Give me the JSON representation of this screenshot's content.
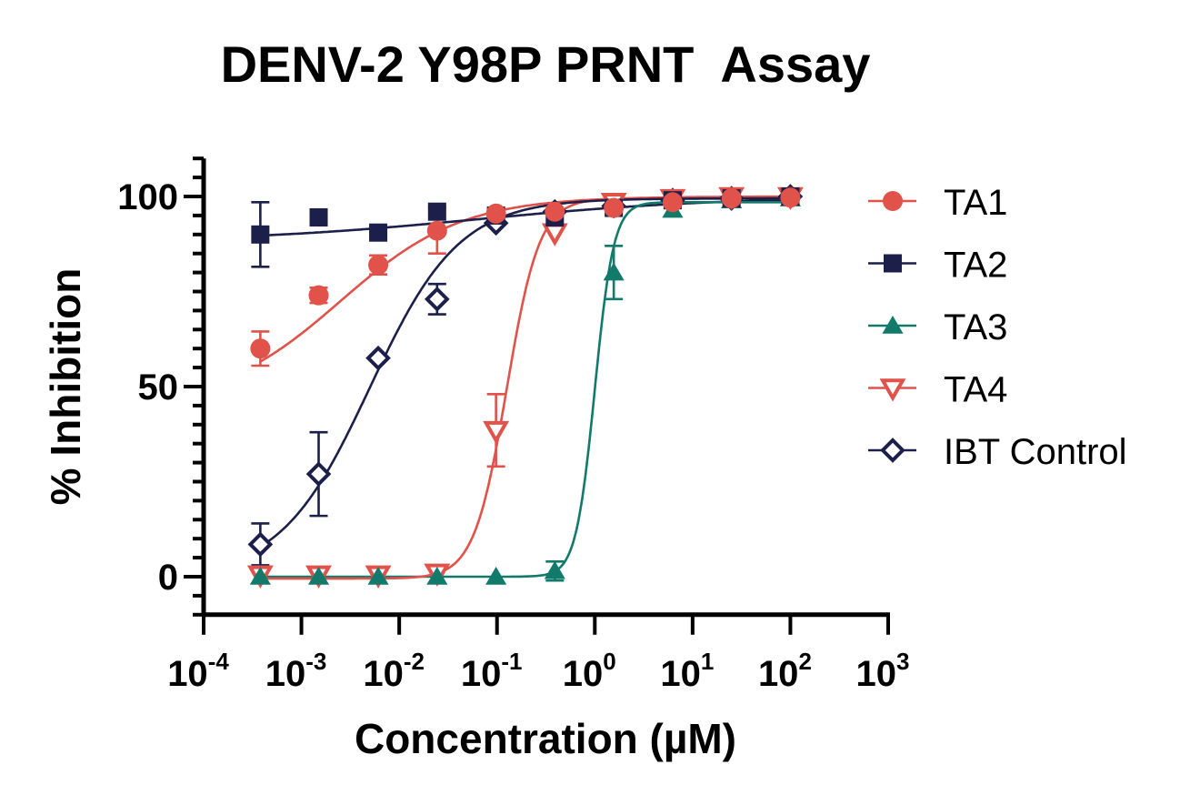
{
  "chart_data": {
    "type": "line",
    "subtype": "dose-response (log x-axis) with fitted sigmoid curves and error bars",
    "title": "DENV-2 Y98P PRNT  Assay",
    "xlabel": "Concentration (µM)",
    "ylabel": "% Inhibition",
    "xscale": "log",
    "xlim_log10": [
      -4,
      3
    ],
    "xticks": [
      {
        "base": "10",
        "exp": "-4"
      },
      {
        "base": "10",
        "exp": "-3"
      },
      {
        "base": "10",
        "exp": "-2"
      },
      {
        "base": "10",
        "exp": "-1"
      },
      {
        "base": "10",
        "exp": "0"
      },
      {
        "base": "10",
        "exp": "1"
      },
      {
        "base": "10",
        "exp": "2"
      },
      {
        "base": "10",
        "exp": "3"
      }
    ],
    "ylim": [
      -10,
      110
    ],
    "yticks": [
      0,
      50,
      100
    ],
    "y_minor_step": 5,
    "grid": false,
    "legend_position": "right",
    "x": [
      0.00038,
      0.0015,
      0.0061,
      0.0244,
      0.0977,
      0.39,
      1.5625,
      6.25,
      25,
      100
    ],
    "series": [
      {
        "name": "TA1",
        "color": "#E0524A",
        "marker": "circle-filled",
        "values": [
          60,
          74,
          82,
          91,
          95.5,
          96,
          97,
          98.5,
          99.5,
          99.7
        ],
        "errors": [
          4.5,
          2,
          2.5,
          6,
          0,
          0,
          0,
          0,
          0,
          0
        ],
        "fit": {
          "bottom": 45,
          "top": 100,
          "log_ic50": -2.6,
          "hill": 0.7
        }
      },
      {
        "name": "TA2",
        "color": "#1C1F4A",
        "marker": "square-filled",
        "values": [
          90,
          94.5,
          90.5,
          96,
          95,
          94.5,
          97,
          99,
          99.5,
          100
        ],
        "errors": [
          8.5,
          0,
          0,
          0,
          0,
          0,
          0,
          0,
          0,
          0
        ],
        "fit": {
          "bottom": 88,
          "top": 100,
          "log_ic50": -1.2,
          "hill": 0.35
        }
      },
      {
        "name": "TA3",
        "color": "#127A6A",
        "marker": "triangle-up-filled",
        "values": [
          0,
          0,
          0,
          0,
          0,
          1.5,
          80,
          96.5,
          99,
          99.5
        ],
        "errors": [
          0,
          0,
          0,
          0,
          0,
          2.5,
          7,
          0,
          0,
          0
        ],
        "fit": {
          "bottom": 0,
          "top": 98.5,
          "log_ic50": 0.0,
          "hill": 4.5
        }
      },
      {
        "name": "TA4",
        "color": "#E0524A",
        "marker": "triangle-down-open",
        "values": [
          0.5,
          0.5,
          0.5,
          1,
          38.5,
          90.5,
          98.5,
          99.5,
          100,
          100
        ],
        "errors": [
          0,
          0,
          0,
          0,
          9.5,
          0,
          0,
          0,
          0,
          0
        ],
        "fit": {
          "bottom": -0.5,
          "top": 99.5,
          "log_ic50": -0.9,
          "hill": 2.6
        }
      },
      {
        "name": "IBT Control",
        "color": "#1C1F4A",
        "marker": "diamond-open",
        "values": [
          8.5,
          27,
          57.5,
          73,
          93,
          96,
          97.5,
          99,
          99.5,
          100
        ],
        "errors": [
          5.5,
          11,
          0,
          4,
          0,
          0,
          0,
          0,
          0,
          0
        ],
        "fit": {
          "bottom": 0,
          "top": 99.5,
          "log_ic50": -2.3,
          "hill": 0.95
        }
      }
    ]
  },
  "legend": {
    "items": [
      {
        "label": "TA1"
      },
      {
        "label": "TA2"
      },
      {
        "label": "TA3"
      },
      {
        "label": "TA4"
      },
      {
        "label": "IBT Control"
      }
    ]
  }
}
